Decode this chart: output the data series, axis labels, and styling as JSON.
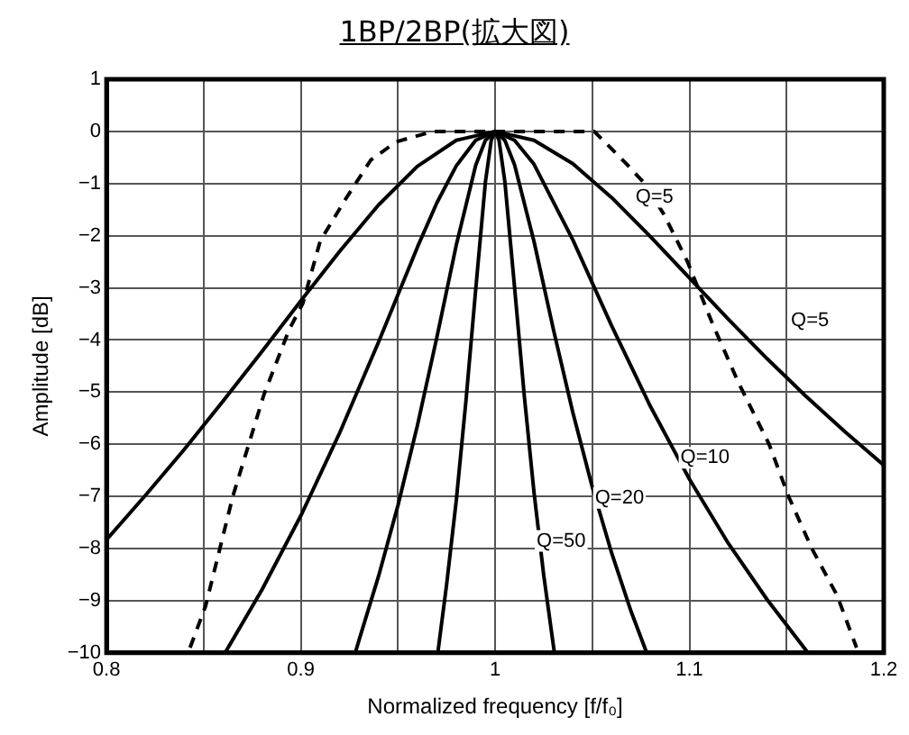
{
  "chart_data": {
    "type": "line",
    "title": "1BP/2BP(拡大図)",
    "xlabel": "Normalized frequency [f/f₀]",
    "ylabel": "Amplitude [dB]",
    "xlim": [
      0.8,
      1.2
    ],
    "xticks": [
      0.8,
      {
        "value": 0.85,
        "label": null
      },
      0.9,
      {
        "value": 0.95,
        "label": null
      },
      1,
      {
        "value": 1.05,
        "label": null
      },
      1.1,
      {
        "value": 1.15,
        "label": null
      },
      1.2
    ],
    "ylim": [
      -10,
      1
    ],
    "yticks": [
      -10,
      -9,
      -8,
      -7,
      -6,
      -5,
      -4,
      -3,
      -2,
      -1,
      0,
      1
    ],
    "grid": true,
    "legend": false,
    "marker": "none",
    "series": [
      {
        "name": "Q=5",
        "color": "#000000",
        "line_style": "solid",
        "x": [
          0.8,
          0.82,
          0.84,
          0.86,
          0.88,
          0.9,
          0.92,
          0.94,
          0.96,
          0.98,
          1,
          1.02,
          1.04,
          1.06,
          1.08,
          1.1,
          1.12,
          1.14,
          1.16,
          1.18,
          1.2
        ],
        "values": [
          -7.83,
          -6.98,
          -6.1,
          -5.17,
          -4.22,
          -3.25,
          -2.3,
          -1.41,
          -0.67,
          -0.17,
          0,
          -0.17,
          -0.62,
          -1.27,
          -2.02,
          -2.81,
          -3.6,
          -4.36,
          -5.08,
          -5.76,
          -6.4
        ]
      },
      {
        "name": "Q=10",
        "color": "#000000",
        "line_style": "solid",
        "x": [
          0.861,
          0.88,
          0.9,
          0.92,
          0.94,
          0.96,
          0.97,
          0.98,
          0.99,
          1,
          1.01,
          1.02,
          1.04,
          1.06,
          1.08,
          1.1,
          1.12,
          1.14,
          1.161
        ],
        "values": [
          -10,
          -8.79,
          -7.37,
          -5.78,
          -4.04,
          -2.22,
          -1.37,
          -0.66,
          -0.17,
          0,
          -0.17,
          -0.63,
          -2.08,
          -3.73,
          -5.28,
          -6.67,
          -7.9,
          -8.98,
          -10
        ]
      },
      {
        "name": "Q=20",
        "color": "#000000",
        "line_style": "solid",
        "x": [
          0.928,
          0.93,
          0.94,
          0.95,
          0.96,
          0.97,
          0.98,
          0.99,
          0.995,
          1,
          1.005,
          1.01,
          1.02,
          1.03,
          1.04,
          1.05,
          1.06,
          1.07,
          1.078
        ],
        "values": [
          -10,
          -9.75,
          -8.53,
          -7.17,
          -5.64,
          -3.95,
          -2.18,
          -0.65,
          -0.17,
          0,
          -0.17,
          -0.64,
          -2.11,
          -3.8,
          -5.39,
          -6.82,
          -8.09,
          -9.21,
          -10
        ]
      },
      {
        "name": "Q=50",
        "color": "#000000",
        "line_style": "solid",
        "x": [
          0.9705,
          0.975,
          0.98,
          0.985,
          0.99,
          0.995,
          0.998,
          1,
          1.002,
          1.005,
          1.01,
          1.015,
          1.02,
          1.025,
          1.0305
        ],
        "values": [
          -10,
          -8.7,
          -7.08,
          -5.16,
          -3.03,
          -0.97,
          -0.17,
          0,
          -0.17,
          -0.96,
          -2.99,
          -5.07,
          -6.92,
          -8.51,
          -10
        ]
      },
      {
        "name": "Q=5",
        "color": "#000000",
        "line_style": "dashed",
        "x": [
          0.843,
          0.851,
          0.865,
          0.881,
          0.894,
          0.901,
          0.91,
          0.923,
          0.936,
          0.949,
          0.968,
          1,
          1.051,
          1.067,
          1.077,
          1.087,
          1.099,
          1.112,
          1.125,
          1.141,
          1.151,
          1.163,
          1.176,
          1.186
        ],
        "values": [
          -9.9,
          -9.1,
          -7,
          -5.05,
          -3.8,
          -3.3,
          -2.1,
          -1.3,
          -0.55,
          -0.2,
          0,
          0,
          0,
          -0.6,
          -1,
          -1.6,
          -2.5,
          -3.7,
          -4.8,
          -6,
          -7,
          -8,
          -8.9,
          -9.9
        ]
      }
    ]
  }
}
